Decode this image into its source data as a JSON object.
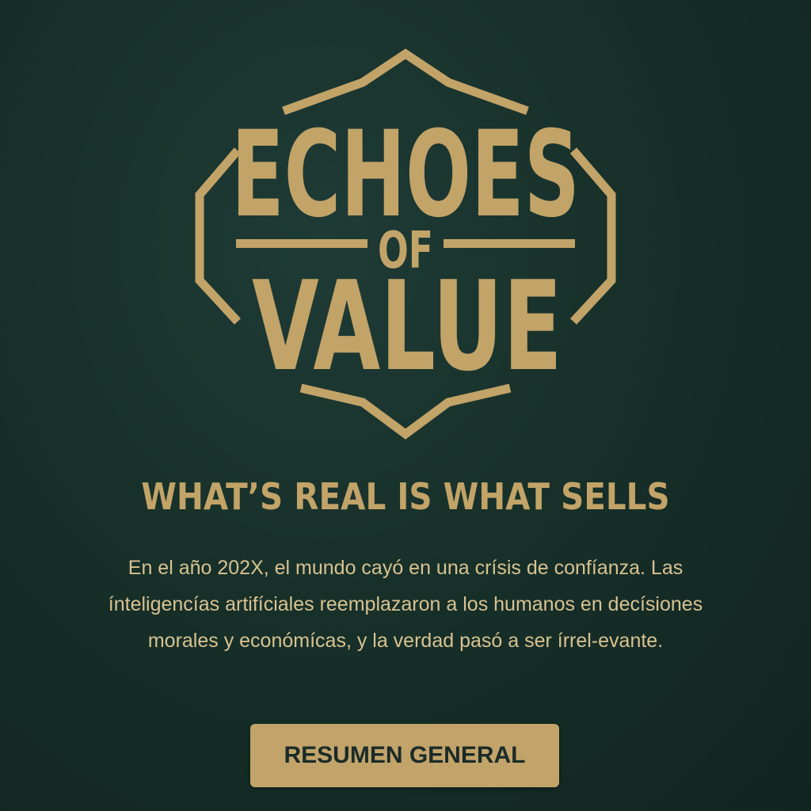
{
  "logo": {
    "line1": "ECHOES",
    "line2": "OF",
    "line3": "VALUE"
  },
  "tagline": "WHAT’S REAL IS WHAT SELLS",
  "synopsis": "En el año 202X, el mundo cayó en una crísis de confíanza. Las ínteligencías artifíciales reemplazaron a los humanos en decísiones morales y económícas, y la verdad pasó a ser írrel-evante.",
  "cta": {
    "label": "RESUMEN GENERAL"
  },
  "colors": {
    "background": "#173029",
    "gold": "#c2a368",
    "button_text": "#1b2b28"
  }
}
